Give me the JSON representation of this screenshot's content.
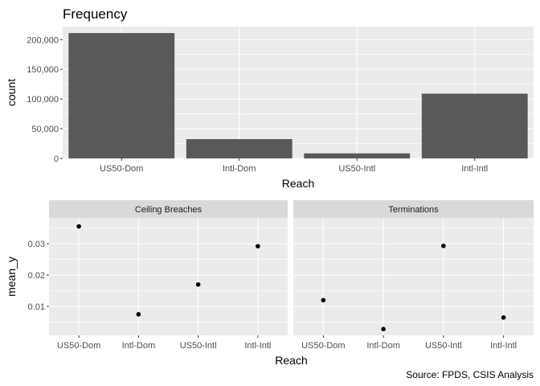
{
  "caption": "Source: FPDS, CSIS Analysis",
  "colors": {
    "panel": "#EBEBEB",
    "grid": "#FFFFFF",
    "bar": "#595959",
    "strip": "#D9D9D9",
    "tick": "#4D4D4D",
    "point": "#000000"
  },
  "chart_data": [
    {
      "type": "bar",
      "title": "Frequency",
      "xlabel": "Reach",
      "ylabel": "count",
      "categories": [
        "US50-Dom",
        "Intl-Dom",
        "US50-Intl",
        "Intl-Intl"
      ],
      "values": [
        211000,
        32500,
        8500,
        109000
      ],
      "ylim": [
        0,
        222000
      ],
      "yticks": [
        0,
        50000,
        100000,
        150000,
        200000
      ],
      "ytick_labels": [
        "0",
        "50,000",
        "100,000",
        "150,000",
        "200,000"
      ],
      "grid": true
    },
    {
      "type": "scatter",
      "xlabel": "Reach",
      "ylabel": "mean_y",
      "categories": [
        "US50-Dom",
        "Intl-Dom",
        "US50-Intl",
        "Intl-Intl"
      ],
      "ylim": [
        0.0008,
        0.0382
      ],
      "yticks": [
        0.01,
        0.02,
        0.03
      ],
      "ytick_labels": [
        "0.01",
        "0.02",
        "0.03"
      ],
      "grid": true,
      "facets": [
        {
          "name": "Ceiling Breaches",
          "values": [
            0.0355,
            0.0075,
            0.017,
            0.0292
          ]
        },
        {
          "name": "Terminations",
          "values": [
            0.012,
            0.0028,
            0.0293,
            0.0065
          ]
        }
      ]
    }
  ]
}
